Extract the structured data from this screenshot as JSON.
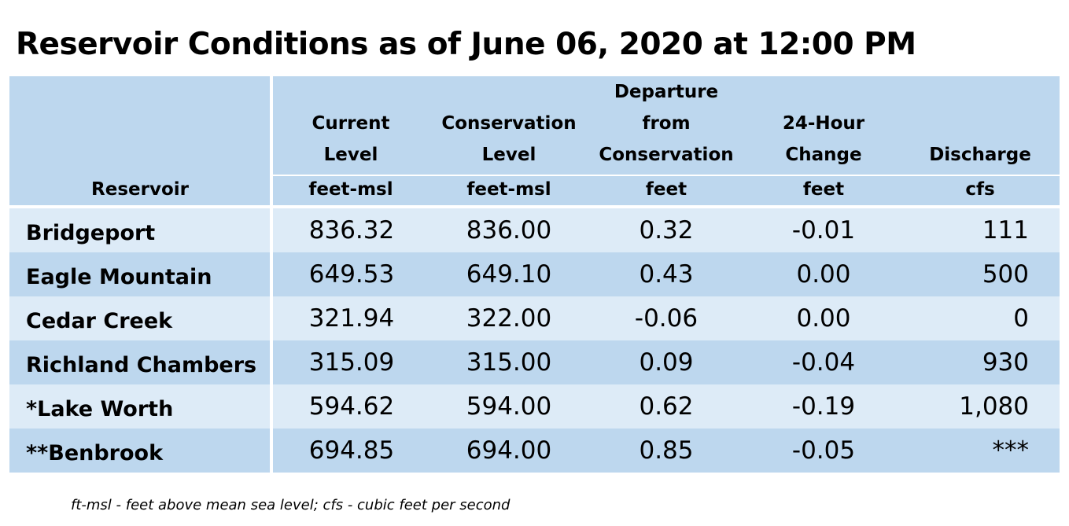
{
  "title": "Reservoir Conditions as of June 06, 2020 at 12:00 PM",
  "columns": [
    {
      "lines": [
        "",
        "",
        "",
        ""
      ],
      "label": "Reservoir",
      "unit": ""
    },
    {
      "lines": [
        "Current",
        "Level"
      ],
      "unit": "feet-msl"
    },
    {
      "lines": [
        "Conservation",
        "Level"
      ],
      "unit": "feet-msl"
    },
    {
      "lines": [
        "Departure",
        "from",
        "Conservation"
      ],
      "unit": "feet"
    },
    {
      "lines": [
        "24-Hour",
        "Change"
      ],
      "unit": "feet"
    },
    {
      "lines": [
        "Discharge"
      ],
      "unit": "cfs"
    }
  ],
  "rows": [
    {
      "name": "Bridgeport",
      "current": "836.32",
      "conservation": "836.00",
      "departure": "0.32",
      "change": "-0.01",
      "discharge": "111"
    },
    {
      "name": "Eagle Mountain",
      "current": "649.53",
      "conservation": "649.10",
      "departure": "0.43",
      "change": "0.00",
      "discharge": "500"
    },
    {
      "name": "Cedar Creek",
      "current": "321.94",
      "conservation": "322.00",
      "departure": "-0.06",
      "change": "0.00",
      "discharge": "0"
    },
    {
      "name": "Richland Chambers",
      "current": "315.09",
      "conservation": "315.00",
      "departure": "0.09",
      "change": "-0.04",
      "discharge": "930"
    },
    {
      "name": "*Lake Worth",
      "current": "594.62",
      "conservation": "594.00",
      "departure": "0.62",
      "change": "-0.19",
      "discharge": "1,080"
    },
    {
      "name": "**Benbrook",
      "current": "694.85",
      "conservation": "694.00",
      "departure": "0.85",
      "change": "-0.05",
      "discharge": "***"
    }
  ],
  "footnote": "ft-msl - feet above mean sea level; cfs - cubic feet per second",
  "colors": {
    "header_bg": "#bdd7ee",
    "row_light": "#ddebf7",
    "row_dark": "#bdd7ee"
  }
}
